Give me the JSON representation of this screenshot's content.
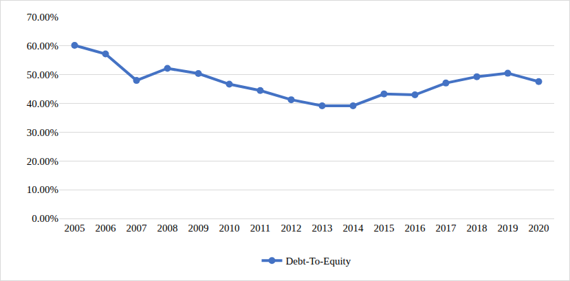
{
  "chart_data": {
    "type": "line",
    "categories": [
      "2005",
      "2006",
      "2007",
      "2008",
      "2009",
      "2010",
      "2011",
      "2012",
      "2013",
      "2014",
      "2015",
      "2016",
      "2017",
      "2018",
      "2019",
      "2020"
    ],
    "series": [
      {
        "name": "Debt-To-Equity",
        "color": "#4472c4",
        "marker": "circle",
        "values": [
          60.2,
          57.2,
          48.0,
          52.2,
          50.4,
          46.7,
          44.5,
          41.3,
          39.2,
          39.2,
          43.3,
          43.0,
          47.1,
          49.3,
          50.5,
          47.6
        ]
      }
    ],
    "ylim": [
      0,
      70
    ],
    "yticks": [
      {
        "value": 0,
        "label": "0.00%"
      },
      {
        "value": 10,
        "label": "10.00%"
      },
      {
        "value": 20,
        "label": "20.00%"
      },
      {
        "value": 30,
        "label": "30.00%"
      },
      {
        "value": 40,
        "label": "40.00%"
      },
      {
        "value": 50,
        "label": "50.00%"
      },
      {
        "value": 60,
        "label": "60.00%"
      },
      {
        "value": 70,
        "label": "70.00%"
      }
    ],
    "grid": true,
    "legend": "bottom"
  }
}
